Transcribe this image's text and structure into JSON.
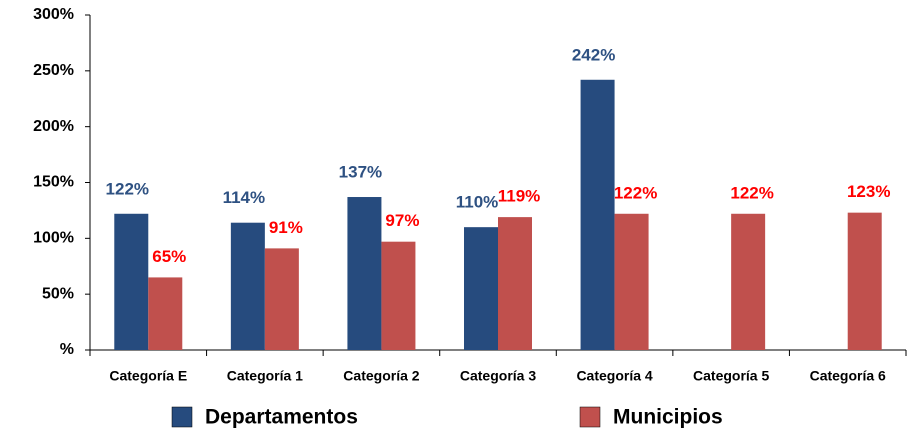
{
  "chart_data": {
    "type": "bar",
    "categories": [
      "Categoría E",
      "Categoría 1",
      "Categoría 2",
      "Categoría 3",
      "Categoría 4",
      "Categoría 5",
      "Categoría 6"
    ],
    "series": [
      {
        "name": "Departamentos",
        "color": "#264b7e",
        "label_color": "#2e5182",
        "values": [
          122,
          114,
          137,
          110,
          242,
          null,
          null
        ],
        "value_labels": [
          "122%",
          "114%",
          "137%",
          "110%",
          "242%",
          null,
          null
        ]
      },
      {
        "name": "Municipios",
        "color": "#c0504d",
        "label_color": "#ff0000",
        "values": [
          65,
          91,
          97,
          119,
          122,
          122,
          123
        ],
        "value_labels": [
          "65%",
          "91%",
          "97%",
          "119%",
          "122%",
          "122%",
          "123%"
        ]
      }
    ],
    "ylim": [
      0,
      300
    ],
    "yticks": [
      {
        "value": 0,
        "label": "%"
      },
      {
        "value": 50,
        "label": "50%"
      },
      {
        "value": 100,
        "label": "100%"
      },
      {
        "value": 150,
        "label": "150%"
      },
      {
        "value": 200,
        "label": "200%"
      },
      {
        "value": 250,
        "label": "250%"
      },
      {
        "value": 300,
        "label": "300%"
      }
    ],
    "grid": false,
    "legend": "bottom"
  }
}
